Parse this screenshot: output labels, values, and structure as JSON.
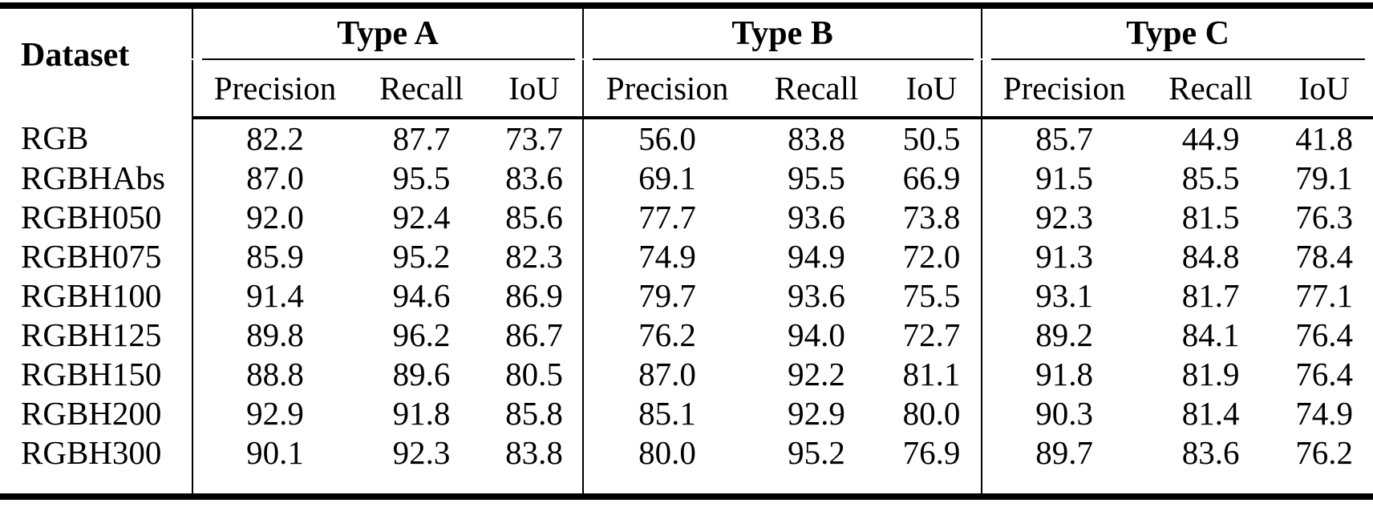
{
  "table": {
    "title": "metric-results-table",
    "dataset_header": "Dataset",
    "groups": [
      {
        "label": "Type A"
      },
      {
        "label": "Type B"
      },
      {
        "label": "Type C"
      }
    ],
    "subheaders": [
      "Precision",
      "Recall",
      "IoU"
    ],
    "rows": [
      {
        "name": "RGB",
        "values": [
          "82.2",
          "87.7",
          "73.7",
          "56.0",
          "83.8",
          "50.5",
          "85.7",
          "44.9",
          "41.8"
        ]
      },
      {
        "name": "RGBHAbs",
        "values": [
          "87.0",
          "95.5",
          "83.6",
          "69.1",
          "95.5",
          "66.9",
          "91.5",
          "85.5",
          "79.1"
        ]
      },
      {
        "name": "RGBH050",
        "values": [
          "92.0",
          "92.4",
          "85.6",
          "77.7",
          "93.6",
          "73.8",
          "92.3",
          "81.5",
          "76.3"
        ]
      },
      {
        "name": "RGBH075",
        "values": [
          "85.9",
          "95.2",
          "82.3",
          "74.9",
          "94.9",
          "72.0",
          "91.3",
          "84.8",
          "78.4"
        ]
      },
      {
        "name": "RGBH100",
        "values": [
          "91.4",
          "94.6",
          "86.9",
          "79.7",
          "93.6",
          "75.5",
          "93.1",
          "81.7",
          "77.1"
        ]
      },
      {
        "name": "RGBH125",
        "values": [
          "89.8",
          "96.2",
          "86.7",
          "76.2",
          "94.0",
          "72.7",
          "89.2",
          "84.1",
          "76.4"
        ]
      },
      {
        "name": "RGBH150",
        "values": [
          "88.8",
          "89.6",
          "80.5",
          "87.0",
          "92.2",
          "81.1",
          "91.8",
          "81.9",
          "76.4"
        ]
      },
      {
        "name": "RGBH200",
        "values": [
          "92.9",
          "91.8",
          "85.8",
          "85.1",
          "92.9",
          "80.0",
          "90.3",
          "81.4",
          "74.9"
        ]
      },
      {
        "name": "RGBH300",
        "values": [
          "90.1",
          "92.3",
          "83.8",
          "80.0",
          "95.2",
          "76.9",
          "89.7",
          "83.6",
          "76.2"
        ]
      }
    ],
    "colors": {
      "text": "#000000",
      "background": "#ffffff",
      "rule": "#000000"
    }
  }
}
